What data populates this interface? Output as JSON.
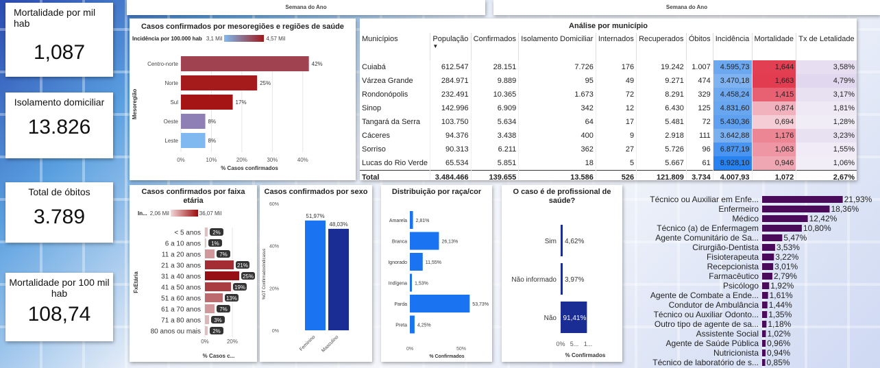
{
  "kpis": {
    "mortalidade_mil": {
      "label": "Mortalidade por mil hab",
      "value": "1,087"
    },
    "isolamento": {
      "label": "Isolamento domiciliar",
      "value": "13.826"
    },
    "obitos": {
      "label": "Total de óbitos",
      "value": "3.789"
    },
    "mortalidade_100mil": {
      "label": "Mortalidade por 100 mil hab",
      "value": "108,74"
    }
  },
  "top_axis_labels": [
    "Semana do Ano",
    "Semana do Ano"
  ],
  "meso": {
    "title": "Casos confirmados por mesoregiões e regiões de saúde",
    "legend_title": "Incidência por 100.000 hab",
    "legend_min": "3,1 Mil",
    "legend_max": "4,57 Mil",
    "ylabel": "Mesoregião",
    "xlabel": "% Casos confirmados",
    "ticks": [
      "0%",
      "10%",
      "20%",
      "30%",
      "40%"
    ]
  },
  "table": {
    "title": "Análise por município",
    "headers": [
      "Municípios",
      "População",
      "Confirmados",
      "Isolamento Domiciliar",
      "Internados",
      "Recuperados",
      "Óbitos",
      "Incidência",
      "Mortalidade",
      "Tx de Letalidade"
    ],
    "rows": [
      [
        "Cuiabá",
        "612.547",
        "28.151",
        "7.726",
        "176",
        "19.242",
        "1.007",
        "4.595,73",
        "1,644",
        "3,58%"
      ],
      [
        "Várzea Grande",
        "284.971",
        "9.889",
        "95",
        "49",
        "9.271",
        "474",
        "3.470,18",
        "1,663",
        "4,79%"
      ],
      [
        "Rondonópolis",
        "232.491",
        "10.365",
        "1.673",
        "72",
        "8.291",
        "329",
        "4.458,24",
        "1,415",
        "3,17%"
      ],
      [
        "Sinop",
        "142.996",
        "6.909",
        "342",
        "12",
        "6.430",
        "125",
        "4.831,60",
        "0,874",
        "1,81%"
      ],
      [
        "Tangará da Serra",
        "103.750",
        "5.634",
        "64",
        "17",
        "5.481",
        "72",
        "5.430,36",
        "0,694",
        "1,28%"
      ],
      [
        "Cáceres",
        "94.376",
        "3.438",
        "400",
        "9",
        "2.918",
        "111",
        "3.642,88",
        "1,176",
        "3,23%"
      ],
      [
        "Sorriso",
        "90.313",
        "6.211",
        "362",
        "27",
        "5.726",
        "96",
        "6.877,19",
        "1,063",
        "1,55%"
      ],
      [
        "Lucas do Rio Verde",
        "65.534",
        "5.851",
        "18",
        "5",
        "5.667",
        "61",
        "8.928,10",
        "0,946",
        "1,06%"
      ]
    ],
    "total": [
      "Total",
      "3.484.466",
      "139.655",
      "13.586",
      "526",
      "121.809",
      "3.734",
      "4.007,93",
      "1,072",
      "2,67%"
    ]
  },
  "faixa": {
    "title": "Casos confirmados por faixa etária",
    "legend_title": "In...",
    "legend_min": "2,06 Mil",
    "legend_max": "36,07 Mil",
    "ylabel": "FxEtária",
    "xlabel": "% Casos c...",
    "ticks": [
      "0%",
      "20%"
    ]
  },
  "sexo": {
    "title": "Casos confirmados por sexo",
    "ylabel": "%GT ConfirmadosIndicasus",
    "ticks": [
      "0%",
      "20%",
      "40%",
      "60%"
    ]
  },
  "raca": {
    "title": "Distribuição por raça/cor",
    "xlabel": "% Confirmados",
    "ticks": [
      "0%",
      "50%"
    ]
  },
  "prof": {
    "title": "O caso é de profissional de saúde?",
    "xlabel": "% Confirmados",
    "ticks": [
      "0%",
      "5...",
      "1..."
    ]
  },
  "chart_data": [
    {
      "type": "bar",
      "title": "Casos confirmados por mesoregiões e regiões de saúde",
      "categories": [
        "Centro-norte",
        "Norte",
        "Sul",
        "Oeste",
        "Leste"
      ],
      "values": [
        42,
        25,
        17,
        8,
        8
      ],
      "labels": [
        "42%",
        "25%",
        "17%",
        "8%",
        "8%"
      ],
      "xlabel": "% Casos confirmados",
      "ylabel": "Mesoregião",
      "xlim": [
        0,
        45
      ]
    },
    {
      "type": "bar",
      "title": "Casos confirmados por faixa etária",
      "categories": [
        "< 5 anos",
        "6 a 10 anos",
        "11 a 20 anos",
        "21 a 30 anos",
        "31 a 40 anos",
        "41 a 50 anos",
        "51 a 60 anos",
        "61 a 70 anos",
        "71 a 80 anos",
        "80 anos ou mais"
      ],
      "values": [
        2,
        1,
        7,
        21,
        25,
        19,
        13,
        7,
        3,
        2
      ],
      "labels": [
        "2%",
        "1%",
        "7%",
        "21%",
        "25%",
        "19%",
        "13%",
        "7%",
        "3%",
        "2%"
      ],
      "xlabel": "% Casos c...",
      "ylabel": "FxEtária",
      "xlim": [
        0,
        30
      ]
    },
    {
      "type": "bar",
      "title": "Casos confirmados por sexo",
      "categories": [
        "Feminino",
        "Masculino"
      ],
      "values": [
        51.97,
        48.03
      ],
      "labels": [
        "51,97%",
        "48,03%"
      ],
      "ylabel": "%GT ConfirmadosIndicasus",
      "ylim": [
        0,
        60
      ]
    },
    {
      "type": "bar",
      "title": "Distribuição por raça/cor",
      "categories": [
        "Amarela",
        "Branca",
        "Ignorado",
        "Indígena",
        "Parda",
        "Preta"
      ],
      "values": [
        2.81,
        26.13,
        11.55,
        1.53,
        53.73,
        4.25
      ],
      "labels": [
        "2,81%",
        "26,13%",
        "11,55%",
        "1,53%",
        "53,73%",
        "4,25%"
      ],
      "xlabel": "% Confirmados",
      "xlim": [
        0,
        60
      ]
    },
    {
      "type": "bar",
      "title": "O caso é de profissional de saúde?",
      "categories": [
        "Sim",
        "Não informado",
        "Não"
      ],
      "values": [
        4.62,
        3.97,
        91.41
      ],
      "labels": [
        "4,62%",
        "3,97%",
        "91,41%"
      ],
      "xlabel": "% Confirmados",
      "xlim": [
        0,
        100
      ]
    },
    {
      "type": "bar",
      "categories": [
        "Técnico ou Auxiliar em Enfe...",
        "Enfermeiro",
        "Médico",
        "Técnico (a) de Enfermagem",
        "Agente Comunitário de Sa...",
        "Cirurgião-Dentista",
        "Fisioterapeuta",
        "Recepcionista",
        "Farmacêutico",
        "Psicólogo",
        "Agente de Combate a Ende...",
        "Condutor de Ambulância",
        "Técnico ou Auxiliar Odonto...",
        "Outro tipo de agente de sa...",
        "Assistente Social",
        "Agente de Saúde Pública",
        "Nutricionista",
        "Técnico de laboratório de s..."
      ],
      "values": [
        21.93,
        18.36,
        12.42,
        10.8,
        5.47,
        3.53,
        3.22,
        3.01,
        2.79,
        1.92,
        1.61,
        1.44,
        1.35,
        1.18,
        1.02,
        0.96,
        0.94,
        0.85
      ],
      "labels": [
        "21,93%",
        "18,36%",
        "12,42%",
        "10,80%",
        "5,47%",
        "3,53%",
        "3,22%",
        "3,01%",
        "2,79%",
        "1,92%",
        "1,61%",
        "1,44%",
        "1,35%",
        "1,18%",
        "1,02%",
        "0,96%",
        "0,94%",
        "0,85%"
      ],
      "xlim": [
        0,
        22
      ]
    }
  ]
}
